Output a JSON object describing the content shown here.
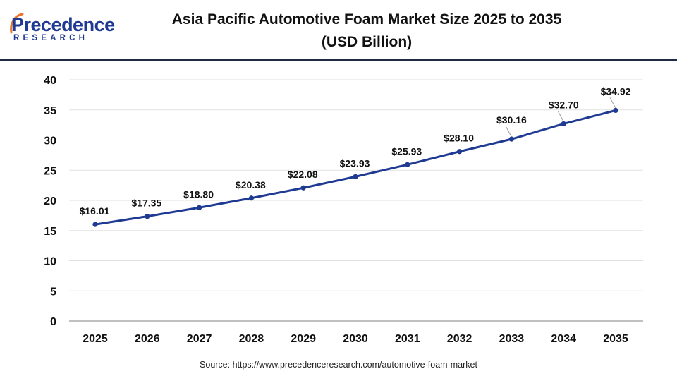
{
  "brand": {
    "name_main": "Precedence",
    "name_sub": "RESEARCH",
    "color": "#1f3a93"
  },
  "title": {
    "line1": "Asia Pacific Automotive Foam Market Size 2025 to 2035",
    "line2": "(USD Billion)"
  },
  "source": "Source: https://www.precedenceresearch.com/automotive-foam-market",
  "chart_data": {
    "type": "line",
    "title": "Asia Pacific Automotive Foam Market Size 2025 to 2035 (USD Billion)",
    "xlabel": "",
    "ylabel": "",
    "categories": [
      "2025",
      "2026",
      "2027",
      "2028",
      "2029",
      "2030",
      "2031",
      "2032",
      "2033",
      "2034",
      "2035"
    ],
    "series": [
      {
        "values": [
          16.01,
          17.35,
          18.8,
          20.38,
          22.08,
          23.93,
          25.93,
          28.1,
          30.16,
          32.7,
          34.92
        ],
        "labels": [
          "$16.01",
          "$17.35",
          "$18.80",
          "$20.38",
          "$22.08",
          "$23.93",
          "$25.93",
          "$28.10",
          "$30.16",
          "$32.70",
          "$34.92"
        ],
        "color": "#1f3a93"
      }
    ],
    "ylim": [
      0,
      40
    ],
    "yticks": [
      0,
      5,
      10,
      15,
      20,
      25,
      30,
      35,
      40
    ],
    "grid": true,
    "legend": "none"
  }
}
